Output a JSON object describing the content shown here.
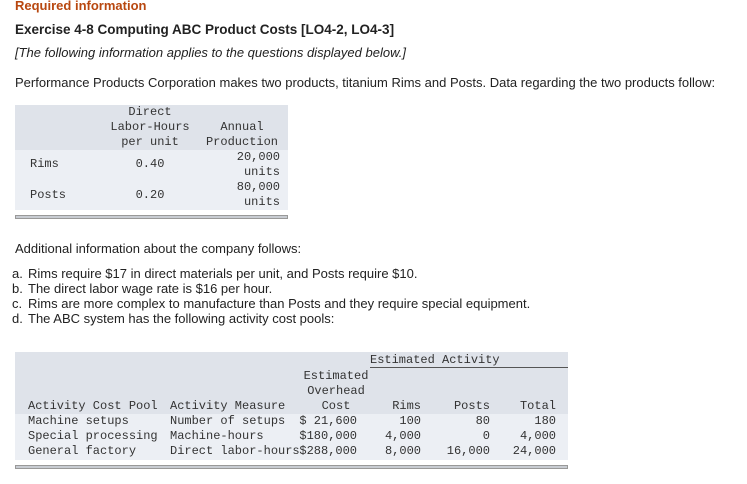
{
  "header": {
    "required": "Required information",
    "title": "Exercise 4-8 Computing ABC Product Costs [LO4-2, LO4-3]",
    "note": "[The following information applies to the questions displayed below.]"
  },
  "intro": "Performance Products Corporation makes two products, titanium Rims and Posts. Data regarding the two products follow:",
  "table1": {
    "headers": [
      [
        "Direct",
        "Labor-Hours",
        "per unit"
      ],
      [
        "Annual",
        "Production"
      ]
    ],
    "rows": [
      {
        "label": "Rims",
        "hours": "0.40",
        "production": [
          "20,000",
          "units"
        ]
      },
      {
        "label": "Posts",
        "hours": "0.20",
        "production": [
          "80,000",
          "units"
        ]
      }
    ]
  },
  "additional": "Additional information about the company follows:",
  "items": [
    {
      "marker": "a.",
      "text": "Rims require $17 in direct materials per unit, and Posts require $10."
    },
    {
      "marker": "b.",
      "text": "The direct labor wage rate is $16 per hour."
    },
    {
      "marker": "c.",
      "text": "Rims are more complex to manufacture than Posts and they require special equipment."
    },
    {
      "marker": "d.",
      "text": "The ABC system has the following activity cost pools:"
    }
  ],
  "table2": {
    "group": "Estimated Activity",
    "headers": [
      "Activity Cost Pool",
      "Activity Measure",
      [
        "Estimated",
        "Overhead",
        "Cost"
      ],
      "Rims",
      "Posts",
      "Total"
    ],
    "rows": [
      [
        "Machine setups",
        "Number of setups",
        "$ 21,600",
        "100",
        "80",
        "180"
      ],
      [
        "Special processing",
        "Machine-hours",
        "$180,000",
        "4,000",
        "0",
        "4,000"
      ],
      [
        "General factory",
        "Direct labor-hours",
        "$288,000",
        "8,000",
        "16,000",
        "24,000"
      ]
    ]
  }
}
